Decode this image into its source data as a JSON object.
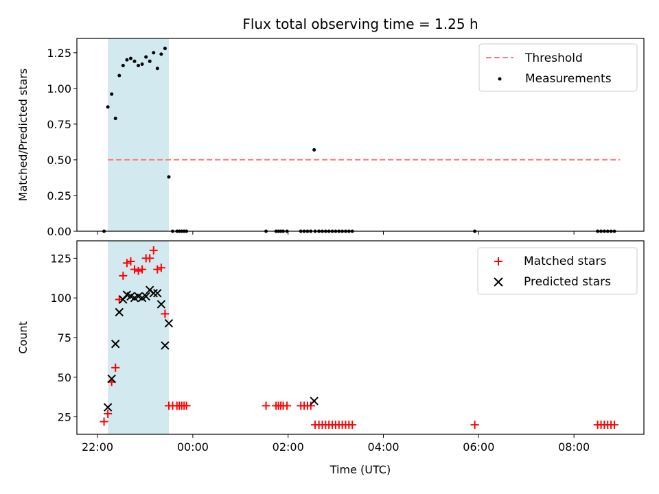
{
  "chart_data": [
    {
      "type": "scatter",
      "title": "Flux total observing time = 1.25 h",
      "xlabel": "",
      "ylabel": "Matched/Predicted stars",
      "x_unit": "hours since 00:00 UTC",
      "xlim": [
        -2.1,
        9.8
      ],
      "ylim": [
        0.0,
        1.35
      ],
      "y_ticks": [
        0.0,
        0.25,
        0.5,
        0.75,
        1.0,
        1.25
      ],
      "y_tick_labels": [
        "0.00",
        "0.25",
        "0.50",
        "0.75",
        "1.00",
        "1.25"
      ],
      "x_ticks": [
        -1.667,
        0.333,
        2.333,
        4.333,
        6.333,
        8.333
      ],
      "shaded_span": [
        -1.45,
        -0.17
      ],
      "shade_color": "#d2e9f0",
      "legend_position": "top-right",
      "series": [
        {
          "name": "Threshold",
          "kind": "dashed-line",
          "color": "#ff7b7b",
          "x": [
            -1.45,
            9.3
          ],
          "y": [
            0.5,
            0.5
          ]
        },
        {
          "name": "Measurements",
          "kind": "dot",
          "color": "#000000",
          "x": [
            -1.53,
            -1.45,
            -1.37,
            -1.29,
            -1.21,
            -1.13,
            -1.05,
            -0.97,
            -0.89,
            -0.81,
            -0.73,
            -0.65,
            -0.57,
            -0.49,
            -0.41,
            -0.33,
            -0.25,
            -0.17,
            -0.09,
            0.0,
            0.05,
            0.1,
            0.15,
            0.2,
            1.87,
            2.08,
            2.13,
            2.18,
            2.23,
            2.31,
            2.6,
            2.67,
            2.74,
            2.81,
            2.88,
            2.9,
            2.98,
            3.05,
            3.12,
            3.19,
            3.26,
            3.33,
            3.4,
            3.47,
            3.54,
            3.61,
            3.68,
            6.25,
            8.83,
            8.9,
            8.97,
            9.04,
            9.11,
            9.18
          ],
          "y": [
            0.0,
            0.87,
            0.96,
            0.79,
            1.09,
            1.16,
            1.2,
            1.21,
            1.19,
            1.16,
            1.17,
            1.22,
            1.19,
            1.25,
            1.14,
            1.24,
            1.28,
            0.38,
            0.0,
            0.0,
            0.0,
            0.0,
            0.0,
            0.0,
            0.0,
            0.0,
            0.0,
            0.0,
            0.0,
            0.0,
            0.0,
            0.0,
            0.0,
            0.0,
            0.57,
            0.0,
            0.0,
            0.0,
            0.0,
            0.0,
            0.0,
            0.0,
            0.0,
            0.0,
            0.0,
            0.0,
            0.0,
            0.0,
            0.0,
            0.0,
            0.0,
            0.0,
            0.0,
            0.0
          ]
        }
      ],
      "legend": [
        "Threshold",
        "Measurements"
      ]
    },
    {
      "type": "scatter",
      "title": "",
      "xlabel": "Time (UTC)",
      "ylabel": "Count",
      "x_unit": "hours since 00:00 UTC",
      "xlim": [
        -2.1,
        9.8
      ],
      "ylim": [
        14.0,
        136.0
      ],
      "y_ticks": [
        25,
        50,
        75,
        100,
        125
      ],
      "y_tick_labels": [
        "25",
        "50",
        "75",
        "100",
        "125"
      ],
      "x_ticks": [
        -1.667,
        0.333,
        2.333,
        4.333,
        6.333,
        8.333
      ],
      "x_tick_labels": [
        "22:00",
        "00:00",
        "02:00",
        "04:00",
        "06:00",
        "08:00"
      ],
      "shaded_span": [
        -1.45,
        -0.17
      ],
      "shade_color": "#d2e9f0",
      "legend_position": "top-right",
      "series": [
        {
          "name": "Matched stars",
          "kind": "plus",
          "color": "#ff0000",
          "x": [
            -1.53,
            -1.45,
            -1.37,
            -1.29,
            -1.21,
            -1.13,
            -1.05,
            -0.97,
            -0.89,
            -0.81,
            -0.73,
            -0.65,
            -0.57,
            -0.49,
            -0.41,
            -0.33,
            -0.25,
            -0.17,
            -0.09,
            0.0,
            0.05,
            0.1,
            0.15,
            0.2,
            1.87,
            2.08,
            2.13,
            2.18,
            2.23,
            2.31,
            2.6,
            2.67,
            2.74,
            2.81,
            2.9,
            2.98,
            3.05,
            3.12,
            3.19,
            3.26,
            3.33,
            3.4,
            3.47,
            3.54,
            3.61,
            3.68,
            6.25,
            8.83,
            8.9,
            8.97,
            9.04,
            9.11,
            9.18
          ],
          "y": [
            22,
            27,
            47,
            56,
            99,
            114,
            122,
            123,
            118,
            117,
            118,
            125,
            125,
            130,
            118,
            119,
            90,
            32,
            32,
            32,
            32,
            32,
            32,
            32,
            32,
            32,
            32,
            32,
            32,
            32,
            32,
            32,
            32,
            32,
            20,
            20,
            20,
            20,
            20,
            20,
            20,
            20,
            20,
            20,
            20,
            20,
            20,
            20,
            20,
            20,
            20,
            20,
            20
          ]
        },
        {
          "name": "Predicted stars",
          "kind": "x",
          "color": "#000000",
          "x": [
            -1.45,
            -1.37,
            -1.29,
            -1.21,
            -1.13,
            -1.05,
            -0.97,
            -0.89,
            -0.81,
            -0.73,
            -0.65,
            -0.57,
            -0.49,
            -0.41,
            -0.33,
            -0.25,
            -0.17,
            2.88
          ],
          "y": [
            31,
            49,
            71,
            91,
            99,
            102,
            101,
            100,
            101,
            100,
            101,
            105,
            103,
            103,
            96,
            70,
            84,
            35
          ]
        }
      ],
      "legend": [
        "Matched stars",
        "Predicted stars"
      ]
    }
  ]
}
